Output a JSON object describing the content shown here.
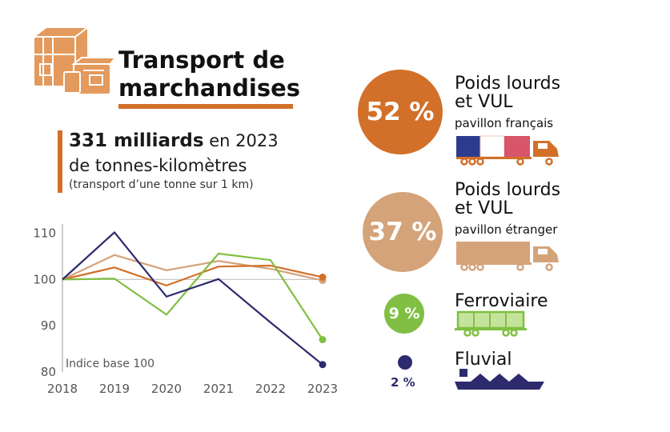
{
  "header": {
    "title_line1": "Transport de",
    "title_line2": "marchandises"
  },
  "key_figure": {
    "value": "331 milliards",
    "value_suffix": " en 2023",
    "unit": "de tonnes-kilomètres",
    "note": "(transport d’une tonne sur 1 km)"
  },
  "colors": {
    "pl_francais": "#d2702a",
    "pl_etranger": "#d4a37a",
    "ferroviaire": "#80bf43",
    "fluvial": "#2d2a6e",
    "reference_line": "#c8c8c8"
  },
  "modes": [
    {
      "id": "pl-fr",
      "pct": "52 %",
      "name_line1": "Poids lourds",
      "name_line2": "et VUL",
      "sub": "pavillon français",
      "icon": "truck-icon"
    },
    {
      "id": "pl-et",
      "pct": "37 %",
      "name_line1": "Poids lourds",
      "name_line2": "et VUL",
      "sub": "pavillon étranger",
      "icon": "truck-icon"
    },
    {
      "id": "fer",
      "pct": "9 %",
      "name_line1": "Ferroviaire",
      "icon": "train-icon"
    },
    {
      "id": "flu",
      "pct": "2 %",
      "name_line1": "Fluvial",
      "icon": "barge-icon"
    }
  ],
  "chart_data": {
    "type": "line",
    "x": [
      2018,
      2019,
      2020,
      2021,
      2022,
      2023
    ],
    "ylim": [
      80,
      112
    ],
    "yticks": [
      80,
      90,
      100,
      110
    ],
    "annotation": "Indice base 100",
    "reference": 100,
    "series": [
      {
        "key": "pl_etranger",
        "values": [
          100,
          105.3,
          102.0,
          104.0,
          102.3,
          99.8
        ]
      },
      {
        "key": "pl_francais",
        "values": [
          100,
          102.6,
          98.7,
          102.8,
          103.0,
          100.5
        ]
      },
      {
        "key": "ferroviaire",
        "values": [
          100,
          100.2,
          92.4,
          105.6,
          104.2,
          87.0
        ]
      },
      {
        "key": "fluvial",
        "values": [
          100,
          110.2,
          96.3,
          100.1,
          90.7,
          81.6
        ]
      }
    ]
  }
}
